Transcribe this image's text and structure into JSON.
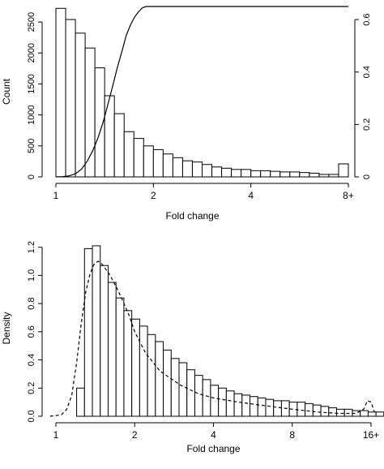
{
  "chart_data": [
    {
      "type": "bar",
      "title": "",
      "xlabel": "Fold change",
      "ylabel": "Count",
      "y2label": "",
      "xscale": "log2",
      "xlim": [
        1,
        8
      ],
      "ylim": [
        0,
        2750
      ],
      "y2lim": [
        0,
        0.65
      ],
      "xticks": [
        1,
        2,
        4,
        8
      ],
      "xtick_labels": [
        "1",
        "2",
        "4",
        "8+"
      ],
      "yticks": [
        0,
        500,
        1000,
        1500,
        2000,
        2500
      ],
      "ytick_labels": [
        "0",
        "500",
        "1000",
        "1500",
        "2000",
        "2500"
      ],
      "y2ticks": [
        0,
        0.2,
        0.4,
        0.6
      ],
      "y2tick_labels": [
        "0",
        "0.2",
        "0.4",
        "0.6"
      ],
      "grid": false,
      "bins_start": 1,
      "bin_width_log2": 0.1,
      "values": [
        2720,
        2540,
        2320,
        2080,
        1760,
        1310,
        1020,
        730,
        620,
        500,
        440,
        370,
        310,
        260,
        240,
        200,
        160,
        140,
        120,
        120,
        100,
        100,
        90,
        80,
        80,
        70,
        60,
        40,
        40,
        210
      ],
      "overlay_line": {
        "axis": "right",
        "style": "solid",
        "x": [
          1,
          1.05,
          1.1,
          1.15,
          1.2,
          1.25,
          1.3,
          1.35,
          1.4,
          1.45,
          1.5,
          1.55,
          1.6,
          1.65,
          1.7,
          1.75,
          1.8,
          1.85,
          1.9,
          2,
          4,
          8
        ],
        "y": [
          0,
          0.001,
          0.004,
          0.012,
          0.03,
          0.06,
          0.1,
          0.15,
          0.21,
          0.28,
          0.35,
          0.42,
          0.48,
          0.54,
          0.58,
          0.61,
          0.63,
          0.645,
          0.65,
          0.65,
          0.65,
          0.65
        ]
      }
    },
    {
      "type": "bar",
      "title": "",
      "xlabel": "Fold change",
      "ylabel": "Density",
      "xscale": "log2",
      "xlim": [
        1,
        16
      ],
      "ylim": [
        0,
        1.25
      ],
      "xticks": [
        1,
        2,
        4,
        8,
        16
      ],
      "xtick_labels": [
        "1",
        "2",
        "4",
        "8",
        "16+"
      ],
      "yticks": [
        0,
        0.2,
        0.4,
        0.6,
        0.8,
        1.0,
        1.2
      ],
      "ytick_labels": [
        "0.0",
        "0.2",
        "0.4",
        "0.6",
        "0.8",
        "1.0",
        "1.2"
      ],
      "grid": false,
      "bins_start": 1.2,
      "bin_width_log2": 0.1,
      "values": [
        0.2,
        1.19,
        1.21,
        1.07,
        0.95,
        0.84,
        0.75,
        0.69,
        0.64,
        0.58,
        0.53,
        0.47,
        0.41,
        0.38,
        0.33,
        0.29,
        0.26,
        0.22,
        0.2,
        0.18,
        0.16,
        0.15,
        0.14,
        0.13,
        0.12,
        0.11,
        0.11,
        0.1,
        0.1,
        0.09,
        0.08,
        0.07,
        0.06,
        0.05,
        0.05,
        0.04,
        0.04,
        0.03,
        0.03,
        0.02,
        0.02,
        0.13
      ],
      "overlay_line": {
        "axis": "left",
        "style": "dashed",
        "x": [
          0.95,
          1.05,
          1.1,
          1.15,
          1.2,
          1.25,
          1.3,
          1.35,
          1.4,
          1.45,
          1.5,
          1.6,
          1.7,
          1.8,
          1.9,
          2,
          2.2,
          2.5,
          3,
          3.5,
          4,
          5,
          6,
          8,
          10,
          12,
          14,
          15,
          15.5,
          16,
          16.5
        ],
        "y": [
          0,
          0.01,
          0.05,
          0.15,
          0.38,
          0.66,
          0.88,
          1.01,
          1.08,
          1.1,
          1.08,
          1.01,
          0.92,
          0.82,
          0.72,
          0.6,
          0.45,
          0.32,
          0.22,
          0.16,
          0.13,
          0.1,
          0.08,
          0.05,
          0.03,
          0.02,
          0.02,
          0.05,
          0.11,
          0.1,
          0.03
        ]
      }
    }
  ]
}
